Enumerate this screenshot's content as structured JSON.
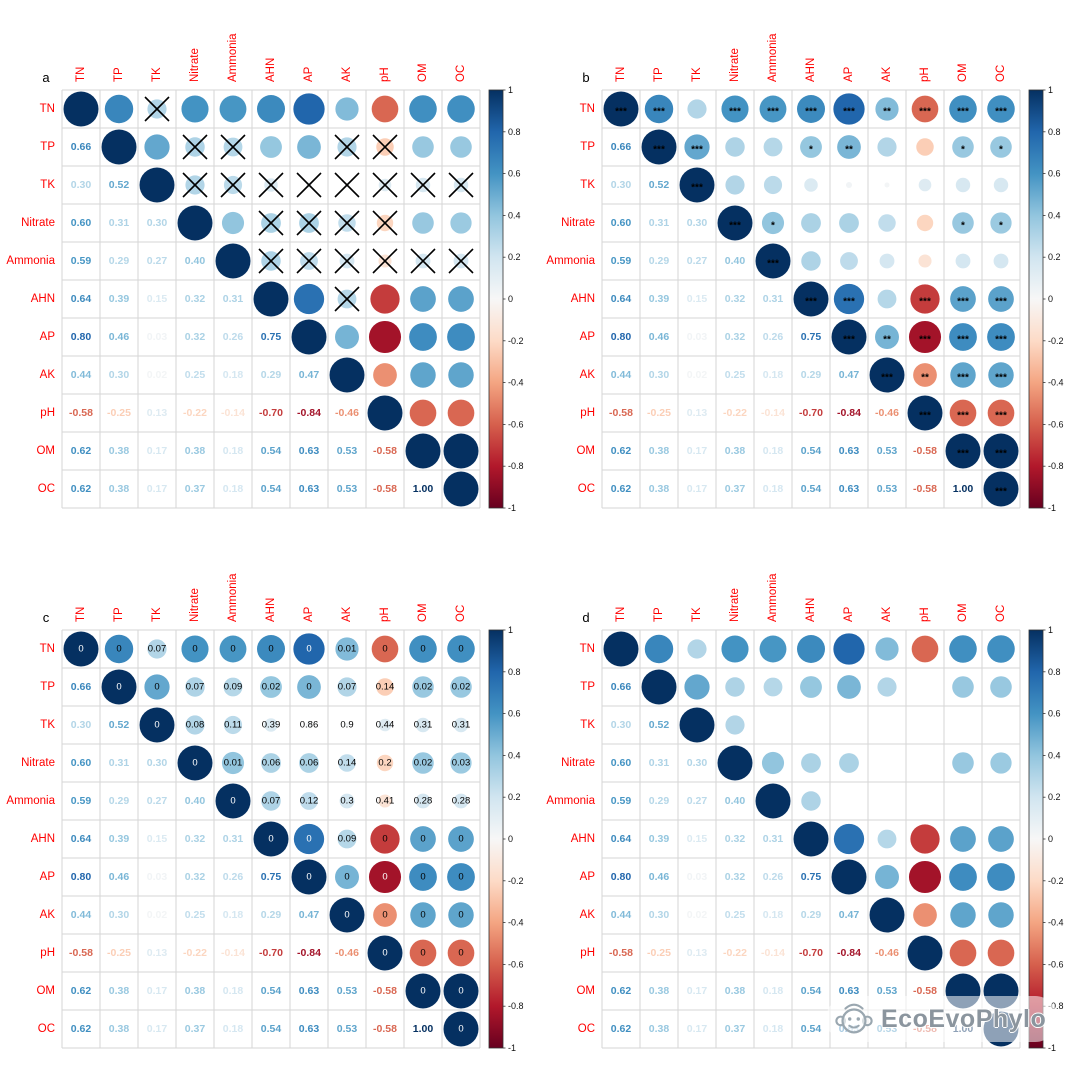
{
  "figure": {
    "background": "#ffffff",
    "watermark": {
      "text": "EcoEvoPhylo",
      "color": "#8b959e"
    }
  },
  "chart_data": {
    "type": "heatmap",
    "subtype": "correlation-matrix-4-panels",
    "variables": [
      "TN",
      "TP",
      "TK",
      "Nitrate",
      "Ammonia",
      "AHN",
      "AP",
      "AK",
      "pH",
      "OM",
      "OC"
    ],
    "label_color": "#ff0000",
    "grid_color": "#d6d6d6",
    "corr_lower": [
      [],
      [
        0.66
      ],
      [
        0.3,
        0.52
      ],
      [
        0.6,
        0.31,
        0.3
      ],
      [
        0.59,
        0.29,
        0.27,
        0.4
      ],
      [
        0.64,
        0.39,
        0.15,
        0.32,
        0.31
      ],
      [
        0.8,
        0.46,
        0.03,
        0.32,
        0.26,
        0.75
      ],
      [
        0.44,
        0.3,
        0.02,
        0.25,
        0.18,
        0.29,
        0.47
      ],
      [
        -0.58,
        -0.25,
        0.13,
        -0.22,
        -0.14,
        -0.7,
        -0.84,
        -0.46
      ],
      [
        0.62,
        0.38,
        0.17,
        0.38,
        0.18,
        0.54,
        0.63,
        0.53,
        -0.58
      ],
      [
        0.62,
        0.38,
        0.17,
        0.37,
        0.18,
        0.54,
        0.63,
        0.53,
        -0.58,
        1.0
      ]
    ],
    "pvalues_upper": [
      [
        "0",
        "0.07",
        "0",
        "0",
        "0",
        "0",
        "0.01",
        "0",
        "0",
        "0"
      ],
      [
        "0",
        "0.07",
        "0.09",
        "0.02",
        "0",
        "0.07",
        "0.14",
        "0.02",
        "0.02"
      ],
      [
        "0.08",
        "0.11",
        "0.39",
        "0.86",
        "0.9",
        "0.44",
        "0.31",
        "0.31"
      ],
      [
        "0.01",
        "0.06",
        "0.06",
        "0.14",
        "0.2",
        "0.02",
        "0.03"
      ],
      [
        "0.07",
        "0.12",
        "0.3",
        "0.41",
        "0.28",
        "0.28"
      ],
      [
        "0",
        "0.09",
        "0",
        "0",
        "0"
      ],
      [
        "0",
        "0",
        "0",
        "0"
      ],
      [
        "0",
        "0",
        "0"
      ],
      [
        "0",
        "0"
      ],
      [
        "0"
      ],
      []
    ],
    "stars_upper": [
      [
        "***",
        "",
        "***",
        "***",
        "***",
        "***",
        "**",
        "***",
        "***",
        "***"
      ],
      [
        "***",
        "",
        "",
        "*",
        "**",
        "",
        "",
        "*",
        "*"
      ],
      [
        "",
        "",
        "",
        "",
        "",
        "",
        "",
        ""
      ],
      [
        "*",
        "",
        "",
        "",
        "",
        "*",
        "*"
      ],
      [
        "",
        "",
        "",
        "",
        "",
        ""
      ],
      [
        "***",
        "",
        "***",
        "***",
        "***"
      ],
      [
        "**",
        "***",
        "***",
        "***"
      ],
      [
        "**",
        "***",
        "***"
      ],
      [
        "***",
        "***"
      ],
      [
        "***"
      ],
      []
    ],
    "diag_star": "***",
    "diag_pvalue": "0",
    "panels": [
      {
        "label": "a",
        "insig_display": "cross",
        "sig_level": 0.05
      },
      {
        "label": "b",
        "insig_display": "stars",
        "sig_level": 0.05
      },
      {
        "label": "c",
        "insig_display": "pvalues",
        "sig_level": 0.05
      },
      {
        "label": "d",
        "insig_display": "blank",
        "sig_level": 0.1
      }
    ],
    "colorbar_ticks": [
      "1",
      "0.8",
      "0.6",
      "0.4",
      "0.2",
      "0",
      "-0.2",
      "-0.4",
      "-0.6",
      "-0.8",
      "-1"
    ],
    "color_scale": [
      {
        "t": -1,
        "c": "#67001f"
      },
      {
        "t": -0.8,
        "c": "#b2182b"
      },
      {
        "t": -0.6,
        "c": "#d6604d"
      },
      {
        "t": -0.4,
        "c": "#f4a582"
      },
      {
        "t": -0.2,
        "c": "#fddbc7"
      },
      {
        "t": 0,
        "c": "#f7f7f7"
      },
      {
        "t": 0.2,
        "c": "#d1e5f0"
      },
      {
        "t": 0.4,
        "c": "#92c5de"
      },
      {
        "t": 0.6,
        "c": "#4393c3"
      },
      {
        "t": 0.8,
        "c": "#2166ac"
      },
      {
        "t": 1,
        "c": "#053061"
      }
    ]
  }
}
